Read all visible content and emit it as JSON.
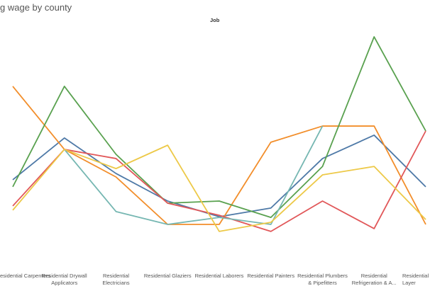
{
  "chart_data": {
    "type": "line",
    "title": "g wage by county",
    "header": "Job",
    "categories": [
      "esidential Carpenters",
      "Residential Drywall Applicators",
      "Residential Electricians",
      "Residential Glaziers",
      "Residential Laborers",
      "Residential Painters",
      "Residential Plumbers & Pipefitters",
      "Residential Refrigeration & A...",
      "Residential S\nLayer"
    ],
    "ylim": [
      0,
      11
    ],
    "series": [
      {
        "color": "#4e79a7",
        "values": [
          3.91,
          5.7,
          4.18,
          3.0,
          2.33,
          2.7,
          4.82,
          5.82,
          3.61
        ]
      },
      {
        "color": "#f28e2b",
        "values": [
          7.91,
          5.21,
          4.03,
          2.0,
          2.0,
          5.52,
          6.21,
          6.21,
          2.0
        ]
      },
      {
        "color": "#59a14f",
        "values": [
          3.61,
          7.91,
          5.0,
          2.91,
          3.0,
          2.3,
          4.48,
          10.03,
          6.0
        ]
      },
      {
        "color": "#e15759",
        "values": [
          2.79,
          5.21,
          4.82,
          2.91,
          2.39,
          1.7,
          3.0,
          1.82,
          6.0
        ]
      },
      {
        "color": "#76b7b2",
        "values": [
          null,
          5.21,
          2.55,
          2.0,
          2.3,
          2.0,
          6.21,
          null,
          null
        ]
      },
      {
        "color": "#edc948",
        "values": [
          2.61,
          5.21,
          4.39,
          5.39,
          1.7,
          2.09,
          4.12,
          4.48,
          2.21
        ]
      }
    ]
  }
}
